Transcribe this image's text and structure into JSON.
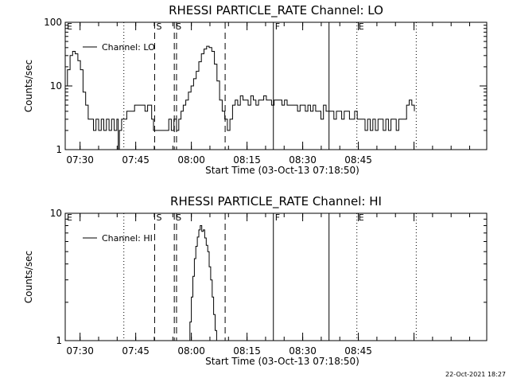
{
  "chart_data": [
    {
      "type": "line",
      "title": "RHESSI PARTICLE_RATE Channel: LO",
      "xlabel": "Start Time (03-Oct-13 07:18:50)",
      "ylabel": "Counts/sec",
      "yscale": "log",
      "ylim": [
        1,
        100
      ],
      "yticks": [
        1,
        10,
        100
      ],
      "ytick_labels": [
        "1",
        "10",
        "100"
      ],
      "xlim_minutes": [
        7.2,
        120.8
      ],
      "xticks_minutes": [
        11.2,
        26.2,
        41.2,
        56.2,
        71.2,
        86.2,
        101.2
      ],
      "xtick_labels": [
        "07:30",
        "07:45",
        "08:00",
        "08:15",
        "08:30",
        "08:45",
        ""
      ],
      "legend": {
        "label": "Channel: LO",
        "placement": "top-left"
      },
      "grid": false,
      "markers": [
        {
          "label": "E",
          "minute": 7.2,
          "style": "none"
        },
        {
          "label": "",
          "minute": 23.0,
          "style": "dotted"
        },
        {
          "label": "S",
          "minute": 31.3,
          "style": "dashed"
        },
        {
          "label": "S",
          "minute": 36.6,
          "style": "dashed"
        },
        {
          "label": "",
          "minute": 37.2,
          "style": "dashed"
        },
        {
          "label": "",
          "minute": 50.3,
          "style": "dashed"
        },
        {
          "label": "F",
          "minute": 63.3,
          "style": "solid"
        },
        {
          "label": "",
          "minute": 78.3,
          "style": "solid"
        },
        {
          "label": "E",
          "minute": 85.8,
          "style": "dotted"
        },
        {
          "label": "",
          "minute": 101.8,
          "style": "dotted"
        }
      ],
      "series": [
        {
          "name": "Channel: LO",
          "x": [
            7.2,
            7.8,
            8.5,
            9.2,
            9.9,
            10.6,
            11.3,
            12.0,
            12.7,
            13.4,
            14.1,
            14.8,
            15.5,
            16.2,
            16.9,
            17.6,
            18.3,
            19.0,
            19.7,
            20.4,
            21.1,
            21.5,
            21.8,
            22.4,
            23.1,
            23.8,
            24.5,
            25.2,
            25.9,
            26.6,
            27.3,
            28.0,
            28.7,
            29.4,
            30.1,
            30.5,
            31.0,
            31.6,
            32.3,
            33.0,
            33.7,
            34.4,
            35.1,
            35.8,
            36.5,
            37.2,
            37.8,
            38.4,
            39.0,
            39.7,
            40.4,
            41.1,
            41.8,
            42.5,
            43.2,
            43.9,
            44.6,
            45.3,
            46.0,
            46.7,
            47.4,
            48.1,
            48.8,
            49.5,
            50.2,
            50.9,
            51.6,
            52.3,
            53.0,
            53.7,
            54.4,
            55.1,
            55.8,
            56.5,
            57.2,
            57.9,
            58.6,
            59.3,
            60.0,
            60.7,
            61.4,
            62.1,
            62.8,
            63.5,
            64.2,
            64.9,
            65.6,
            66.3,
            67.0,
            67.7,
            68.4,
            69.1,
            69.8,
            70.5,
            71.2,
            71.9,
            72.6,
            73.3,
            74.0,
            74.7,
            75.4,
            76.1,
            76.8,
            77.5,
            78.2,
            78.9,
            79.6,
            80.3,
            81.0,
            81.7,
            82.4,
            83.1,
            83.8,
            84.5,
            85.2,
            85.9,
            86.6,
            87.3,
            88.0,
            88.7,
            89.4,
            90.1,
            90.8,
            91.5,
            92.2,
            92.9,
            93.6,
            94.3,
            95.0,
            95.7,
            96.4,
            97.1,
            97.8,
            98.5,
            99.2,
            99.9,
            100.6,
            101.3
          ],
          "values": [
            10,
            18,
            30,
            35,
            32,
            25,
            18,
            8,
            5,
            3,
            3,
            2,
            3,
            2,
            3,
            2,
            3,
            2,
            3,
            2,
            3,
            1,
            2,
            3,
            3,
            4,
            4,
            4,
            5,
            5,
            5,
            5,
            4,
            5,
            5,
            3,
            2,
            2,
            2,
            2,
            2,
            2,
            3,
            2,
            3,
            2,
            3,
            4,
            5,
            6,
            8,
            10,
            13,
            17,
            24,
            32,
            38,
            42,
            40,
            35,
            22,
            12,
            6,
            4,
            3,
            2,
            3,
            5,
            6,
            5,
            7,
            6,
            6,
            5,
            7,
            6,
            5,
            6,
            6,
            7,
            6,
            6,
            5,
            6,
            6,
            6,
            5,
            6,
            5,
            5,
            5,
            5,
            4,
            5,
            5,
            4,
            5,
            4,
            5,
            4,
            4,
            3,
            5,
            4,
            4,
            4,
            3,
            4,
            4,
            3,
            4,
            4,
            3,
            3,
            4,
            3,
            3,
            3,
            2,
            3,
            2,
            3,
            2,
            3,
            3,
            2,
            3,
            2,
            3,
            3,
            2,
            3,
            3,
            3,
            5,
            6,
            5,
            4
          ]
        }
      ]
    },
    {
      "type": "line",
      "title": "RHESSI PARTICLE_RATE Channel: HI",
      "xlabel": "Start Time (03-Oct-13 07:18:50)",
      "ylabel": "Counts/sec",
      "yscale": "log",
      "ylim": [
        1,
        10
      ],
      "yticks": [
        1,
        10
      ],
      "ytick_labels": [
        "1",
        "10"
      ],
      "xlim_minutes": [
        7.2,
        120.8
      ],
      "xticks_minutes": [
        11.2,
        26.2,
        41.2,
        56.2,
        71.2,
        86.2,
        101.2
      ],
      "xtick_labels": [
        "07:30",
        "07:45",
        "08:00",
        "08:15",
        "08:30",
        "08:45",
        ""
      ],
      "legend": {
        "label": "Channel: HI",
        "placement": "top-left"
      },
      "grid": false,
      "markers": [
        {
          "label": "E",
          "minute": 7.2,
          "style": "none"
        },
        {
          "label": "",
          "minute": 23.0,
          "style": "dotted"
        },
        {
          "label": "S",
          "minute": 31.3,
          "style": "dashed"
        },
        {
          "label": "S",
          "minute": 36.6,
          "style": "dashed"
        },
        {
          "label": "",
          "minute": 37.2,
          "style": "dashed"
        },
        {
          "label": "",
          "minute": 50.3,
          "style": "dashed"
        },
        {
          "label": "F",
          "minute": 63.3,
          "style": "solid"
        },
        {
          "label": "",
          "minute": 78.3,
          "style": "solid"
        },
        {
          "label": "E",
          "minute": 85.8,
          "style": "dotted"
        },
        {
          "label": "",
          "minute": 101.8,
          "style": "dotted"
        }
      ],
      "series": [
        {
          "name": "Channel: HI",
          "x": [
            40.6,
            40.8,
            41.2,
            41.6,
            42.0,
            42.4,
            42.8,
            43.2,
            43.6,
            44.0,
            44.4,
            44.8,
            45.2,
            45.6,
            46.0,
            46.4,
            46.8,
            47.2,
            47.6,
            48.0
          ],
          "values": [
            1.0,
            1.4,
            2.2,
            3.2,
            4.4,
            5.5,
            6.5,
            7.4,
            8.0,
            7.2,
            7.4,
            6.4,
            5.6,
            5.0,
            3.8,
            3.0,
            2.2,
            1.6,
            1.2,
            1.0
          ]
        }
      ]
    }
  ],
  "footer": {
    "timestamp": "22-Oct-2021 18:27"
  }
}
